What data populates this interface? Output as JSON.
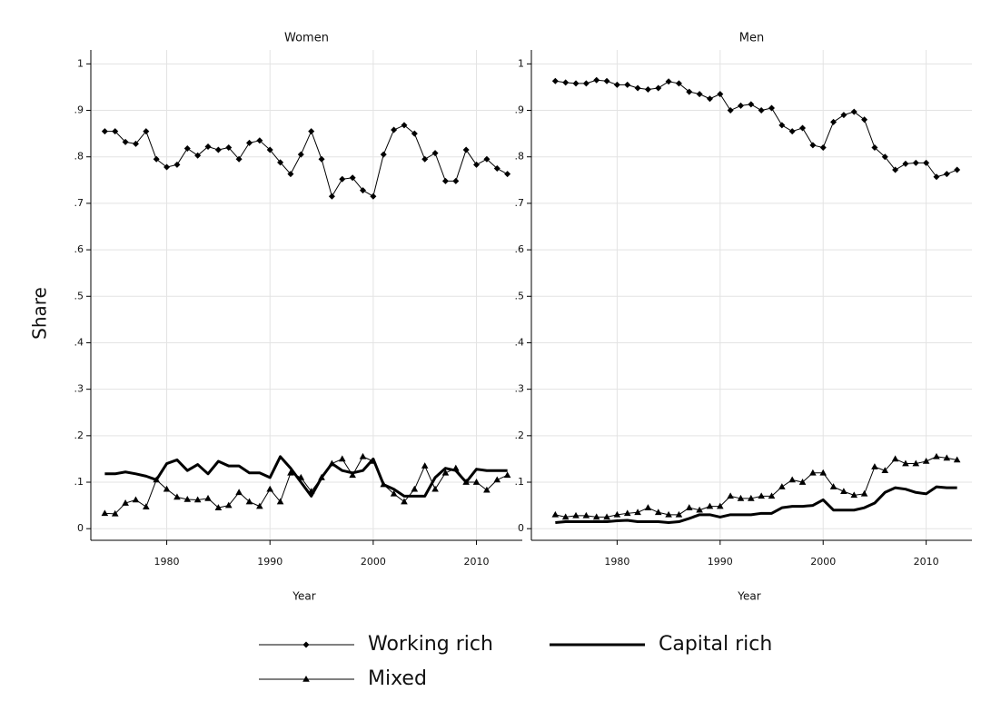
{
  "chart_data": [
    {
      "type": "line",
      "title": "Women",
      "xlabel": "Year",
      "ylabel": "Share",
      "xlim": [
        1973,
        2014
      ],
      "xticks": [
        1980,
        1990,
        2000,
        2010
      ],
      "ylim": [
        -0.025,
        1.03
      ],
      "yticks": [
        0,
        {
          "value": 0.1,
          "label": ".1"
        },
        {
          "value": 0.2,
          "label": ".2"
        },
        {
          "value": 0.3,
          "label": ".3"
        },
        {
          "value": 0.4,
          "label": ".4"
        },
        {
          "value": 0.5,
          "label": ".5"
        },
        {
          "value": 0.6,
          "label": ".6"
        },
        {
          "value": 0.7,
          "label": ".7"
        },
        {
          "value": 0.8,
          "label": ".8"
        },
        {
          "value": 0.9,
          "label": ".9"
        },
        1
      ],
      "grid": true,
      "x": [
        1974,
        1975,
        1976,
        1977,
        1978,
        1979,
        1980,
        1981,
        1982,
        1983,
        1984,
        1985,
        1986,
        1987,
        1988,
        1989,
        1990,
        1991,
        1992,
        1993,
        1994,
        1995,
        1996,
        1997,
        1998,
        1999,
        2000,
        2001,
        2002,
        2003,
        2004,
        2005,
        2006,
        2007,
        2008,
        2009,
        2010,
        2011,
        2012,
        2013
      ],
      "series": [
        {
          "name": "Working rich",
          "color": "#000000",
          "marker": "diamond",
          "line_width": 1,
          "values": [
            0.855,
            0.855,
            0.832,
            0.828,
            0.855,
            0.795,
            0.778,
            0.783,
            0.818,
            0.803,
            0.822,
            0.815,
            0.82,
            0.795,
            0.83,
            0.835,
            0.815,
            0.788,
            0.763,
            0.805,
            0.855,
            0.795,
            0.715,
            0.752,
            0.755,
            0.728,
            0.715,
            0.805,
            0.858,
            0.868,
            0.85,
            0.795,
            0.808,
            0.748,
            0.748,
            0.815,
            0.783,
            0.795,
            0.775,
            0.763
          ]
        },
        {
          "name": "Capital rich",
          "color": "#000000",
          "line_width": 3,
          "values": [
            0.118,
            0.118,
            0.122,
            0.118,
            0.113,
            0.105,
            0.14,
            0.148,
            0.125,
            0.138,
            0.118,
            0.145,
            0.135,
            0.135,
            0.12,
            0.12,
            0.11,
            0.155,
            0.13,
            0.1,
            0.07,
            0.11,
            0.14,
            0.125,
            0.12,
            0.125,
            0.15,
            0.095,
            0.085,
            0.07,
            0.07,
            0.07,
            0.11,
            0.13,
            0.125,
            0.1,
            0.128,
            0.125,
            0.125,
            0.125
          ]
        },
        {
          "name": "Mixed",
          "color": "#000000",
          "marker": "triangle",
          "line_width": 1,
          "values": [
            0.033,
            0.032,
            0.055,
            0.062,
            0.047,
            0.105,
            0.085,
            0.068,
            0.063,
            0.062,
            0.065,
            0.045,
            0.05,
            0.078,
            0.058,
            0.048,
            0.085,
            0.058,
            0.12,
            0.11,
            0.08,
            0.11,
            0.14,
            0.15,
            0.115,
            0.155,
            0.145,
            0.095,
            0.075,
            0.058,
            0.085,
            0.135,
            0.085,
            0.12,
            0.13,
            0.1,
            0.1,
            0.083,
            0.105,
            0.115
          ]
        }
      ]
    },
    {
      "type": "line",
      "title": "Men",
      "xlabel": "Year",
      "xlim": [
        1973,
        2014
      ],
      "xticks": [
        1980,
        1990,
        2000,
        2010
      ],
      "ylim": [
        -0.025,
        1.03
      ],
      "yticks": [
        0,
        {
          "value": 0.1,
          "label": ".1"
        },
        {
          "value": 0.2,
          "label": ".2"
        },
        {
          "value": 0.3,
          "label": ".3"
        },
        {
          "value": 0.4,
          "label": ".4"
        },
        {
          "value": 0.5,
          "label": ".5"
        },
        {
          "value": 0.6,
          "label": ".6"
        },
        {
          "value": 0.7,
          "label": ".7"
        },
        {
          "value": 0.8,
          "label": ".8"
        },
        {
          "value": 0.9,
          "label": ".9"
        },
        1
      ],
      "grid": true,
      "x": [
        1974,
        1975,
        1976,
        1977,
        1978,
        1979,
        1980,
        1981,
        1982,
        1983,
        1984,
        1985,
        1986,
        1987,
        1988,
        1989,
        1990,
        1991,
        1992,
        1993,
        1994,
        1995,
        1996,
        1997,
        1998,
        1999,
        2000,
        2001,
        2002,
        2003,
        2004,
        2005,
        2006,
        2007,
        2008,
        2009,
        2010,
        2011,
        2012,
        2013
      ],
      "series": [
        {
          "name": "Working rich",
          "color": "#000000",
          "marker": "diamond",
          "line_width": 1,
          "values": [
            0.963,
            0.96,
            0.958,
            0.958,
            0.965,
            0.963,
            0.955,
            0.955,
            0.948,
            0.945,
            0.948,
            0.962,
            0.958,
            0.94,
            0.935,
            0.925,
            0.935,
            0.9,
            0.91,
            0.913,
            0.9,
            0.905,
            0.868,
            0.855,
            0.862,
            0.825,
            0.82,
            0.875,
            0.89,
            0.897,
            0.88,
            0.82,
            0.8,
            0.772,
            0.785,
            0.787,
            0.787,
            0.757,
            0.763,
            0.772
          ]
        },
        {
          "name": "Capital rich",
          "color": "#000000",
          "line_width": 3,
          "values": [
            0.013,
            0.015,
            0.015,
            0.015,
            0.015,
            0.015,
            0.017,
            0.018,
            0.015,
            0.015,
            0.015,
            0.013,
            0.015,
            0.022,
            0.03,
            0.03,
            0.025,
            0.03,
            0.03,
            0.03,
            0.033,
            0.033,
            0.045,
            0.048,
            0.048,
            0.05,
            0.062,
            0.04,
            0.04,
            0.04,
            0.045,
            0.055,
            0.078,
            0.088,
            0.085,
            0.078,
            0.075,
            0.09,
            0.088,
            0.088
          ]
        },
        {
          "name": "Mixed",
          "color": "#000000",
          "marker": "triangle",
          "line_width": 1,
          "values": [
            0.03,
            0.025,
            0.028,
            0.028,
            0.025,
            0.025,
            0.03,
            0.033,
            0.035,
            0.045,
            0.035,
            0.03,
            0.03,
            0.045,
            0.04,
            0.048,
            0.048,
            0.07,
            0.065,
            0.065,
            0.07,
            0.07,
            0.09,
            0.105,
            0.1,
            0.12,
            0.12,
            0.09,
            0.08,
            0.072,
            0.075,
            0.133,
            0.125,
            0.15,
            0.14,
            0.14,
            0.145,
            0.155,
            0.152,
            0.148
          ]
        }
      ]
    }
  ]
}
